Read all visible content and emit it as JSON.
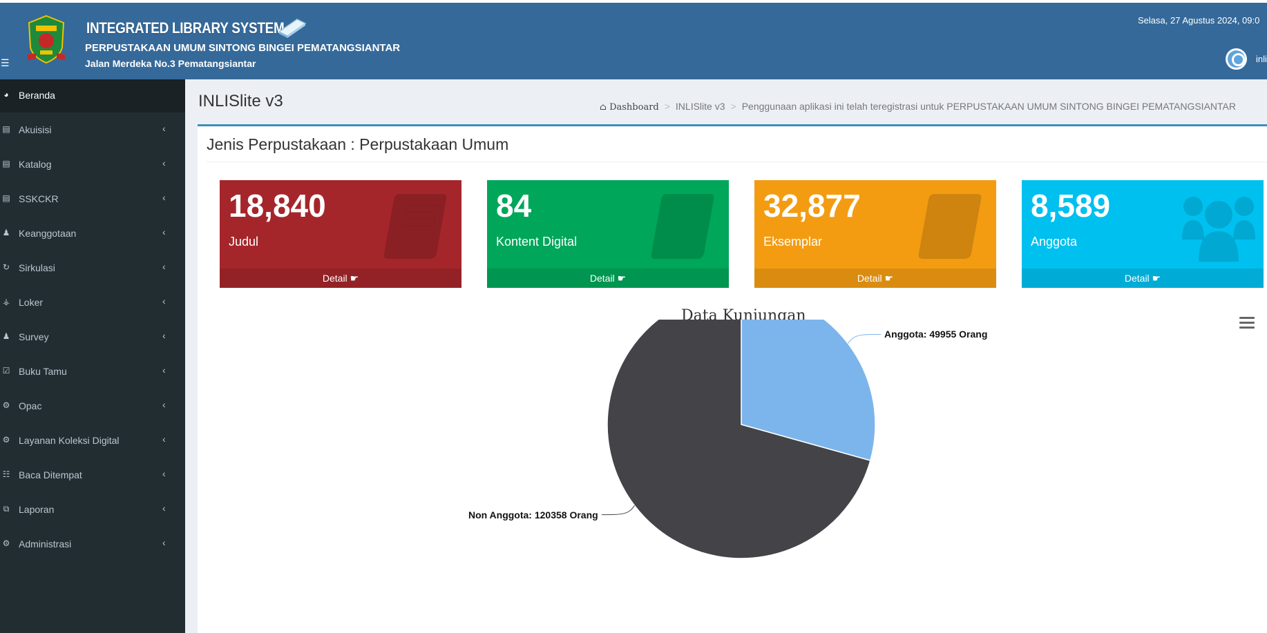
{
  "header": {
    "system_title": "INTEGRATED LIBRARY SYSTEM",
    "library_name": "PERPUSTAKAAN UMUM SINTONG BINGEI PEMATANGSIANTAR",
    "library_address": "Jalan Merdeka No.3 Pematangsiantar",
    "datetime": "Selasa, 27 Agustus 2024, 09:0",
    "user_name": "inli",
    "menu_icon": "hamburger-icon"
  },
  "sidebar": {
    "items": [
      {
        "label": "Beranda",
        "icon": "dashboard-icon"
      },
      {
        "label": "Akuisisi",
        "icon": "book-icon"
      },
      {
        "label": "Katalog",
        "icon": "book-icon"
      },
      {
        "label": "SSKCKR",
        "icon": "book-icon"
      },
      {
        "label": "Keanggotaan",
        "icon": "user-icon"
      },
      {
        "label": "Sirkulasi",
        "icon": "refresh-icon"
      },
      {
        "label": "Loker",
        "icon": "key-icon"
      },
      {
        "label": "Survey",
        "icon": "users-icon"
      },
      {
        "label": "Buku Tamu",
        "icon": "checkbox-icon"
      },
      {
        "label": "Opac",
        "icon": "cogs-icon"
      },
      {
        "label": "Layanan Koleksi Digital",
        "icon": "cogs-icon"
      },
      {
        "label": "Baca Ditempat",
        "icon": "rss-icon"
      },
      {
        "label": "Laporan",
        "icon": "copy-icon"
      },
      {
        "label": "Administrasi",
        "icon": "cogs-icon"
      }
    ]
  },
  "content": {
    "title": "INLISlite v3",
    "breadcrumb": {
      "home": "Dashboard",
      "current": "INLISlite v3",
      "note": "Penggunaan aplikasi ini telah teregistrasi untuk PERPUSTAKAAN UMUM SINTONG BINGEI PEMATANGSIANTAR"
    },
    "box_title": "Jenis Perpustakaan : Perpustakaan Umum"
  },
  "tiles": [
    {
      "value": "18,840",
      "label": "Judul",
      "footer": "Detail",
      "color": "#a4262b"
    },
    {
      "value": "84",
      "label": "Kontent Digital",
      "footer": "Detail",
      "color": "#00a65a"
    },
    {
      "value": "32,877",
      "label": "Eksemplar",
      "footer": "Detail",
      "color": "#f39c12"
    },
    {
      "value": "8,589",
      "label": "Anggota",
      "footer": "Detail",
      "color": "#00c0ef"
    }
  ],
  "chart_data": {
    "type": "pie",
    "title": "Data Kunjungan",
    "slices": [
      {
        "name": "Anggota",
        "value": 49955,
        "label": "Anggota: 49955 Orang",
        "color": "#7cb5ec"
      },
      {
        "name": "Non Anggota",
        "value": 120358,
        "label": "Non Anggota: 120358 Orang",
        "color": "#434348"
      }
    ]
  }
}
